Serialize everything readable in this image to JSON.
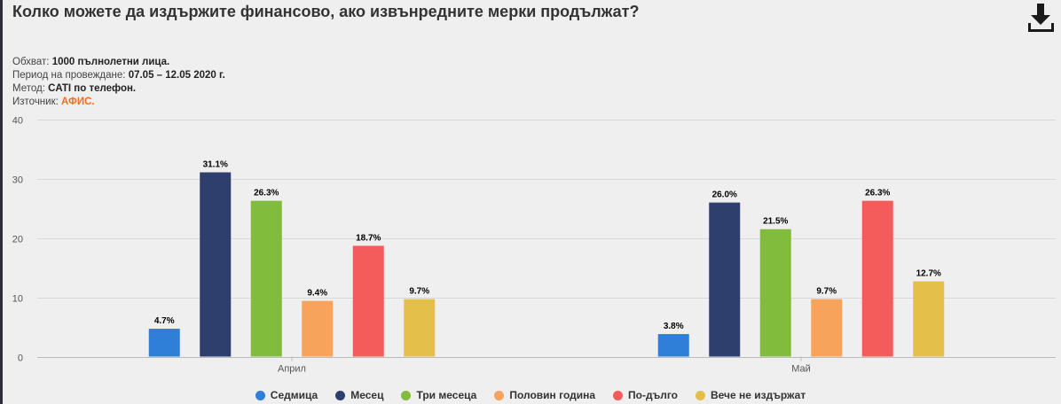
{
  "title": "Колко можете да издържите финансово, ако извънредните мерки продължат?",
  "download_icon": "download-icon",
  "meta": {
    "coverage_label": "Обхват:",
    "coverage_value": "1000 пълнолетни лица.",
    "period_label": "Период на провеждане:",
    "period_value": "07.05 – 12.05 2020 г.",
    "method_label": "Метод:",
    "method_value": "CATI по телефон.",
    "source_label": "Източник:",
    "source_value": "АФИС."
  },
  "colors": {
    "accent": "#f26c21",
    "background": "#efefef"
  },
  "chart_data": {
    "type": "bar",
    "title": "Колко можете да издържите финансово, ако извънредните мерки продължат?",
    "categories": [
      "Април",
      "Май"
    ],
    "series": [
      {
        "name": "Седмица",
        "color": "#2f7ed8",
        "values": [
          4.7,
          3.8
        ],
        "labels": [
          "4.7%",
          "3.8%"
        ]
      },
      {
        "name": "Месец",
        "color": "#2e3f6e",
        "values": [
          31.1,
          26.0
        ],
        "labels": [
          "31.1%",
          "26.0%"
        ]
      },
      {
        "name": "Три месеца",
        "color": "#82bc3d",
        "values": [
          26.3,
          21.5
        ],
        "labels": [
          "26.3%",
          "21.5%"
        ]
      },
      {
        "name": "Половин година",
        "color": "#f7a35c",
        "values": [
          9.4,
          9.7
        ],
        "labels": [
          "9.4%",
          "9.7%"
        ]
      },
      {
        "name": "По-дълго",
        "color": "#f45b5b",
        "values": [
          18.7,
          26.3
        ],
        "labels": [
          "18.7%",
          "26.3%"
        ]
      },
      {
        "name": "Вече не издържат",
        "color": "#e4c04a",
        "values": [
          9.7,
          12.7
        ],
        "labels": [
          "9.7%",
          "12.7%"
        ]
      }
    ],
    "ylim": [
      0,
      40
    ],
    "yticks": [
      "0",
      "10",
      "20",
      "30",
      "40"
    ],
    "xlabel": "",
    "ylabel": "",
    "grid": true,
    "legend_position": "bottom"
  }
}
